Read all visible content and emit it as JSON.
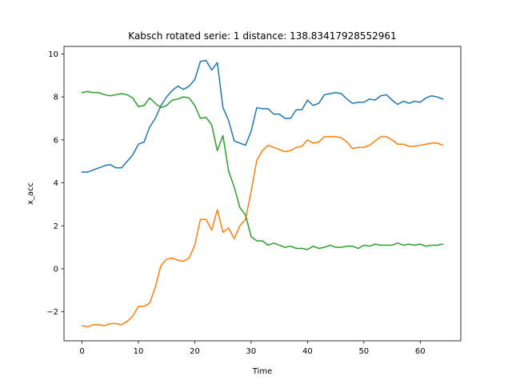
{
  "chart_data": {
    "type": "line",
    "title": "Kabsch rotated serie: 1  distance: 138.83417928552961",
    "xlabel": "Time",
    "ylabel": "x_acc",
    "xlim": [
      -3.2,
      67.2
    ],
    "ylim": [
      -3.35,
      10.35
    ],
    "xticks": [
      0,
      10,
      20,
      30,
      40,
      50,
      60
    ],
    "yticks": [
      -2,
      0,
      2,
      4,
      6,
      8,
      10
    ],
    "grid": false,
    "legend": "none",
    "x": [
      0,
      1,
      2,
      3,
      4,
      5,
      6,
      7,
      8,
      9,
      10,
      11,
      12,
      13,
      14,
      15,
      16,
      17,
      18,
      19,
      20,
      21,
      22,
      23,
      24,
      25,
      26,
      27,
      28,
      29,
      30,
      31,
      32,
      33,
      34,
      35,
      36,
      37,
      38,
      39,
      40,
      41,
      42,
      43,
      44,
      45,
      46,
      47,
      48,
      49,
      50,
      51,
      52,
      53,
      54,
      55,
      56,
      57,
      58,
      59,
      60,
      61,
      62,
      63,
      64
    ],
    "series": [
      {
        "color": "#1f77b4",
        "values": [
          4.5,
          4.5,
          4.6,
          4.7,
          4.8,
          4.85,
          4.7,
          4.7,
          5.0,
          5.3,
          5.8,
          5.9,
          6.6,
          7.0,
          7.6,
          8.0,
          8.3,
          8.5,
          8.35,
          8.5,
          8.8,
          9.65,
          9.7,
          9.25,
          9.6,
          7.5,
          6.9,
          5.95,
          5.85,
          5.75,
          6.4,
          7.5,
          7.45,
          7.45,
          7.2,
          7.2,
          7.0,
          7.0,
          7.4,
          7.4,
          7.85,
          7.6,
          7.7,
          8.1,
          8.15,
          8.2,
          8.15,
          7.9,
          7.7,
          7.75,
          7.75,
          7.9,
          7.85,
          8.05,
          8.1,
          7.85,
          7.65,
          7.8,
          7.7,
          7.8,
          7.75,
          7.95,
          8.05,
          8.0,
          7.9
        ]
      },
      {
        "color": "#ff7f0e",
        "values": [
          -2.65,
          -2.7,
          -2.6,
          -2.6,
          -2.65,
          -2.55,
          -2.55,
          -2.6,
          -2.45,
          -2.2,
          -1.75,
          -1.75,
          -1.6,
          -0.85,
          0.15,
          0.45,
          0.5,
          0.4,
          0.35,
          0.5,
          1.1,
          2.3,
          2.3,
          1.8,
          2.75,
          1.7,
          1.9,
          1.4,
          2.0,
          2.3,
          3.6,
          5.05,
          5.5,
          5.75,
          5.65,
          5.55,
          5.45,
          5.5,
          5.65,
          5.7,
          6.0,
          5.85,
          5.9,
          6.15,
          6.15,
          6.15,
          6.1,
          5.9,
          5.6,
          5.65,
          5.65,
          5.75,
          5.95,
          6.15,
          6.15,
          6.0,
          5.8,
          5.8,
          5.7,
          5.7,
          5.75,
          5.8,
          5.85,
          5.85,
          5.75
        ]
      },
      {
        "color": "#2ca02c",
        "values": [
          8.2,
          8.25,
          8.2,
          8.2,
          8.1,
          8.05,
          8.1,
          8.15,
          8.1,
          7.95,
          7.55,
          7.6,
          7.95,
          7.7,
          7.5,
          7.6,
          7.85,
          7.9,
          8.0,
          7.95,
          7.6,
          7.0,
          7.05,
          6.7,
          5.5,
          6.2,
          4.55,
          3.8,
          2.85,
          2.5,
          1.5,
          1.3,
          1.3,
          1.1,
          1.2,
          1.1,
          1.0,
          1.05,
          0.95,
          0.95,
          0.9,
          1.05,
          0.95,
          1.0,
          1.1,
          1.0,
          1.0,
          1.05,
          1.05,
          0.95,
          1.1,
          1.05,
          1.15,
          1.1,
          1.1,
          1.1,
          1.2,
          1.1,
          1.15,
          1.1,
          1.15,
          1.05,
          1.1,
          1.1,
          1.15
        ]
      }
    ]
  }
}
